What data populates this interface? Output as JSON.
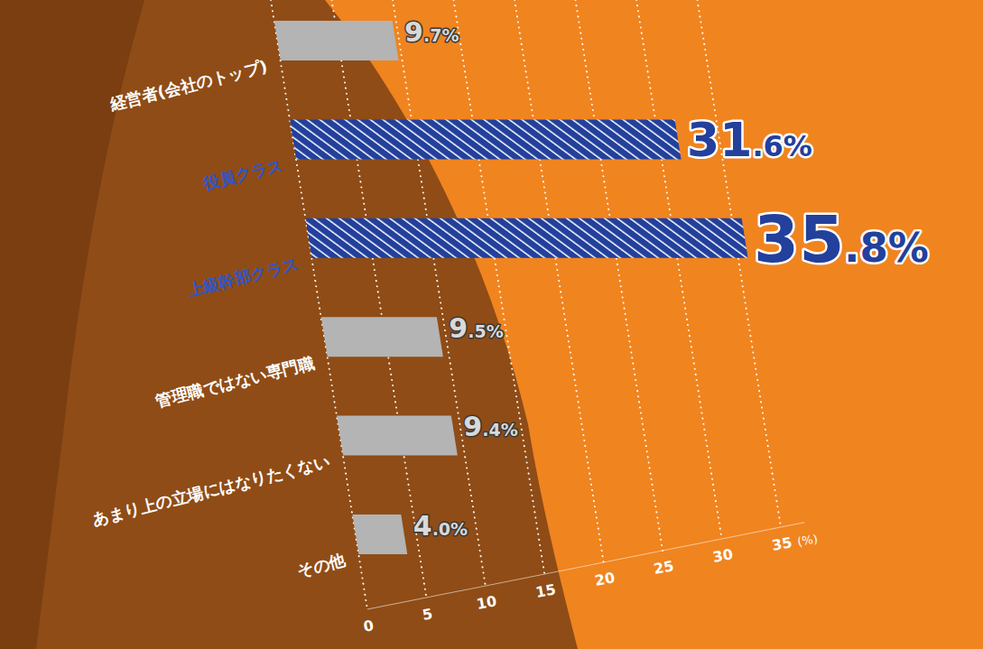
{
  "chart_data": {
    "type": "bar",
    "orientation": "horizontal",
    "categories": [
      "経営者(会社のトップ)",
      "役員クラス",
      "上級幹部クラス",
      "管理職ではない専門職",
      "あまり上の立場にはなりたくない",
      "その他"
    ],
    "values": [
      9.7,
      31.6,
      35.8,
      9.5,
      9.4,
      4.0
    ],
    "value_labels": [
      "9.7%",
      "31.6%",
      "35.8%",
      "9.5%",
      "9.4%",
      "4.0%"
    ],
    "colors": [
      "#b4b4b4",
      "#22409c",
      "#22409c",
      "#b4b4b4",
      "#b4b4b4",
      "#b4b4b4"
    ],
    "xlim": [
      0,
      37
    ],
    "xticks": [
      0,
      5,
      10,
      15,
      20,
      25,
      30,
      35
    ],
    "xlabel": "(%)",
    "grid": true,
    "data_labels": true
  }
}
